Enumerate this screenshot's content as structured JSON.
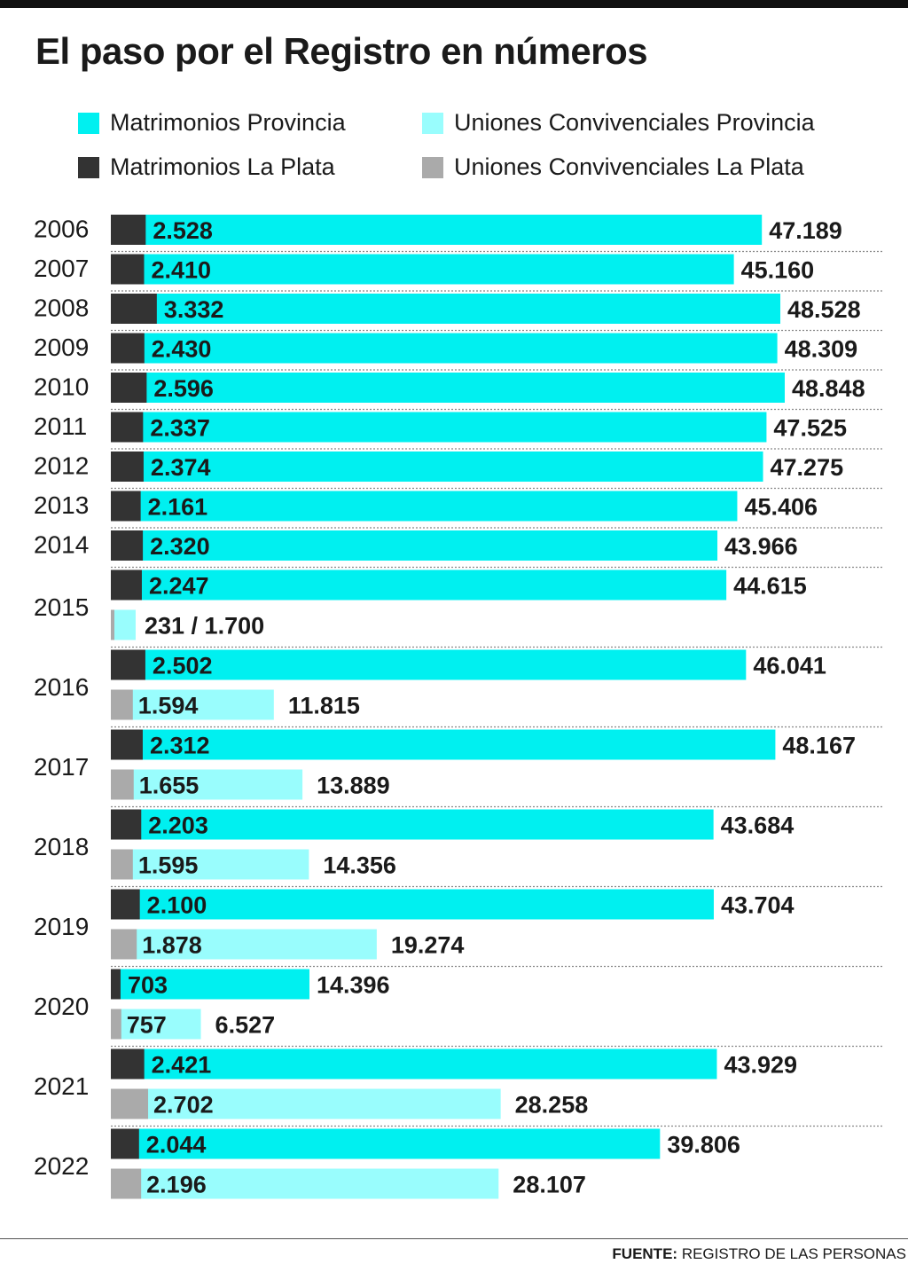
{
  "title": "El paso por el Registro en números",
  "source": {
    "label": "FUENTE:",
    "text": "REGISTRO DE LAS PERSONAS"
  },
  "colors": {
    "matrimonios_provincia": "#00f0f0",
    "uniones_provincia": "#99fdfd",
    "matrimonios_laplata": "#333333",
    "uniones_laplata": "#aaaaaa"
  },
  "legend": [
    {
      "label": "Matrimonios Provincia",
      "color": "#00f0f0"
    },
    {
      "label": "Uniones Convivenciales Provincia",
      "color": "#99fdfd"
    },
    {
      "label": "Matrimonios La Plata",
      "color": "#333333"
    },
    {
      "label": "Uniones Convivenciales La Plata",
      "color": "#aaaaaa"
    }
  ],
  "chart_data": {
    "type": "bar",
    "orientation": "horizontal",
    "title": "El paso por el Registro en números",
    "categories": [
      "2006",
      "2007",
      "2008",
      "2009",
      "2010",
      "2011",
      "2012",
      "2013",
      "2014",
      "2015",
      "2016",
      "2017",
      "2018",
      "2019",
      "2020",
      "2021",
      "2022"
    ],
    "series": [
      {
        "name": "Matrimonios Provincia",
        "values": [
          47189,
          45160,
          48528,
          48309,
          48848,
          47525,
          47275,
          45406,
          43966,
          44615,
          46041,
          48167,
          43684,
          43704,
          14396,
          43929,
          39806
        ]
      },
      {
        "name": "Matrimonios La Plata",
        "values": [
          2528,
          2410,
          3332,
          2430,
          2596,
          2337,
          2374,
          2161,
          2320,
          2247,
          2502,
          2312,
          2203,
          2100,
          703,
          2421,
          2044
        ]
      },
      {
        "name": "Uniones Convivenciales Provincia",
        "values": [
          null,
          null,
          null,
          null,
          null,
          null,
          null,
          null,
          null,
          1700,
          11815,
          13889,
          14356,
          19274,
          6527,
          28258,
          28107
        ]
      },
      {
        "name": "Uniones Convivenciales La Plata",
        "values": [
          null,
          null,
          null,
          null,
          null,
          null,
          null,
          null,
          null,
          231,
          1594,
          1655,
          1595,
          1878,
          757,
          2702,
          2196
        ]
      }
    ],
    "labels": {
      "matrimonios_laplata": [
        "2.528",
        "2.410",
        "3.332",
        "2.430",
        "2.596",
        "2.337",
        "2.374",
        "2.161",
        "2.320",
        "2.247",
        "2.502",
        "2.312",
        "2.203",
        "2.100",
        "703",
        "2.421",
        "2.044"
      ],
      "matrimonios_provincia": [
        "47.189",
        "45.160",
        "48.528",
        "48.309",
        "48.848",
        "47.525",
        "47.275",
        "45.406",
        "43.966",
        "44.615",
        "46.041",
        "48.167",
        "43.684",
        "43.704",
        "14.396",
        "43.929",
        "39.806"
      ],
      "uniones_laplata": [
        null,
        null,
        null,
        null,
        null,
        null,
        null,
        null,
        null,
        null,
        "1.594",
        "1.655",
        "1.595",
        "1.878",
        "757",
        "2.702",
        "2.196"
      ],
      "uniones_provincia": [
        null,
        null,
        null,
        null,
        null,
        null,
        null,
        null,
        null,
        null,
        "11.815",
        "13.889",
        "14.356",
        "19.274",
        "6.527",
        "28.258",
        "28.107"
      ],
      "uniones_combined": [
        null,
        null,
        null,
        null,
        null,
        null,
        null,
        null,
        null,
        "231 / 1.700",
        null,
        null,
        null,
        null,
        null,
        null,
        null
      ]
    },
    "xlim": [
      0,
      48848
    ],
    "grid": "dotted row separators",
    "legend_position": "top"
  }
}
